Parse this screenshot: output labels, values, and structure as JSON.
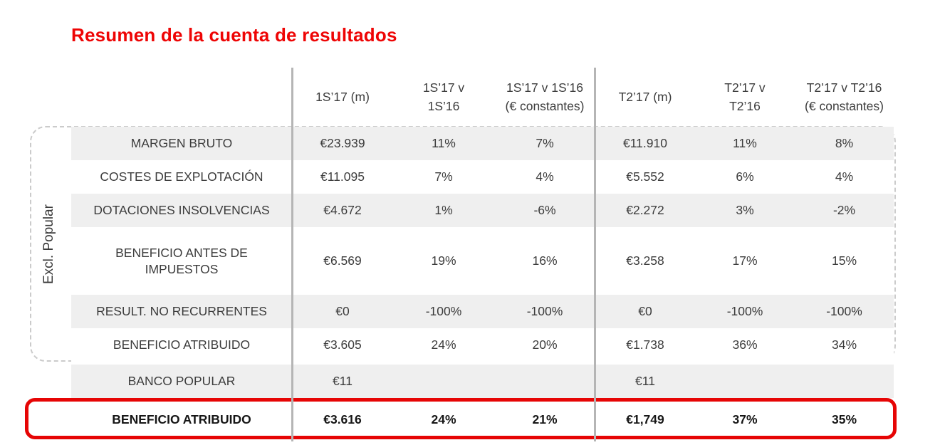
{
  "title": "Resumen de la cuenta de resultados",
  "side_label": "Excl. Popular",
  "colors": {
    "title_red": "#ee0505",
    "highlight_red": "#e60505",
    "row_shade": "#efefef",
    "separator_gray": "#b5b5b5",
    "dashed_border": "#cbcbcb",
    "text": "#3c3c3c"
  },
  "table": {
    "headers": [
      {
        "line1": "1S’17 (m)",
        "line2": ""
      },
      {
        "line1": "1S’17 v",
        "line2": "1S’16"
      },
      {
        "line1": "1S’17 v 1S’16",
        "line2": "(€ constantes)"
      },
      {
        "line1": "T2’17 (m)",
        "line2": ""
      },
      {
        "line1": "T2’17 v",
        "line2": "T2’16"
      },
      {
        "line1": "T2’17 v T2’16",
        "line2": "(€ constantes)"
      }
    ],
    "rows": [
      {
        "label": "MARGEN BRUTO",
        "shaded": true,
        "tall": false,
        "bold": false,
        "gap": "",
        "values": [
          "€23.939",
          "11%",
          "7%",
          "€11.910",
          "11%",
          "8%"
        ]
      },
      {
        "label": "COSTES DE EXPLOTACIÓN",
        "shaded": false,
        "tall": false,
        "bold": false,
        "gap": "",
        "values": [
          "€11.095",
          "7%",
          "4%",
          "€5.552",
          "6%",
          "4%"
        ]
      },
      {
        "label": "DOTACIONES INSOLVENCIAS",
        "shaded": true,
        "tall": false,
        "bold": false,
        "gap": "",
        "values": [
          "€4.672",
          "1%",
          "-6%",
          "€2.272",
          "3%",
          "-2%"
        ]
      },
      {
        "label": "BENEFICIO ANTES DE IMPUESTOS",
        "shaded": false,
        "tall": true,
        "bold": false,
        "gap": "",
        "values": [
          "€6.569",
          "19%",
          "16%",
          "€3.258",
          "17%",
          "15%"
        ]
      },
      {
        "label": "RESULT. NO RECURRENTES",
        "shaded": true,
        "tall": false,
        "bold": false,
        "gap": "",
        "values": [
          "€0",
          "-100%",
          "-100%",
          "€0",
          "-100%",
          "-100%"
        ]
      },
      {
        "label": "BENEFICIO ATRIBUIDO",
        "shaded": false,
        "tall": false,
        "bold": false,
        "gap": "",
        "values": [
          "€3.605",
          "24%",
          "20%",
          "€1.738",
          "36%",
          "34%"
        ]
      },
      {
        "label": "BANCO POPULAR",
        "shaded": true,
        "tall": false,
        "bold": false,
        "gap": "sm",
        "values": [
          "€11",
          "",
          "",
          "€11",
          "",
          ""
        ]
      },
      {
        "label": "BENEFICIO ATRIBUIDO",
        "shaded": false,
        "tall": false,
        "bold": true,
        "gap": "md",
        "values": [
          "€3.616",
          "24%",
          "21%",
          "€1,749",
          "37%",
          "35%"
        ]
      }
    ]
  }
}
